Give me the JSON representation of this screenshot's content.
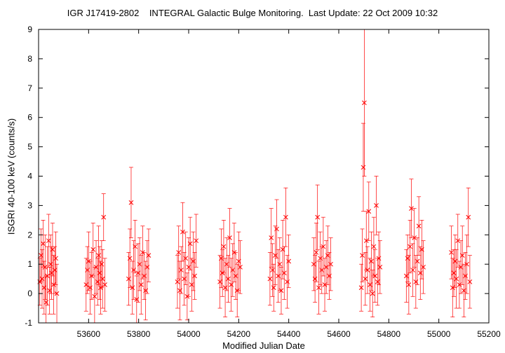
{
  "chart_data": {
    "type": "scatter",
    "title": "IGR J17419-2802    INTEGRAL Galactic Bulge Monitoring.  Last Update: 22 Oct 2009 10:32",
    "xlabel": "Modified Julian Date",
    "ylabel": "ISGRI 40-100 keV (counts/s)",
    "xlim": [
      53400,
      55200
    ],
    "ylim": [
      -1,
      9
    ],
    "xticks": [
      53600,
      53800,
      54000,
      54200,
      54400,
      54600,
      54800,
      55000,
      55200
    ],
    "yticks": [
      -1,
      0,
      1,
      2,
      3,
      4,
      5,
      6,
      7,
      8,
      9
    ],
    "grid": false,
    "legend": "none",
    "marker": "x",
    "error_bars": true,
    "color": "#ff0000",
    "series": [
      {
        "x": [
          53405,
          53410,
          53414,
          53418,
          53422,
          53426,
          53430,
          53435,
          53440,
          53444,
          53448,
          53452,
          53456,
          53460,
          53465,
          53469,
          53473,
          53590,
          53595,
          53600,
          53606,
          53612,
          53618,
          53624,
          53630,
          53636,
          53640,
          53644,
          53648,
          53652,
          53656,
          53660,
          53665,
          53760,
          53765,
          53770,
          53775,
          53780,
          53786,
          53792,
          53798,
          53804,
          53810,
          53816,
          53822,
          53828,
          53834,
          53840,
          53955,
          53960,
          53965,
          53970,
          53976,
          53982,
          53988,
          53994,
          54000,
          54006,
          54012,
          54018,
          54024,
          54030,
          54125,
          54130,
          54135,
          54140,
          54146,
          54152,
          54158,
          54164,
          54170,
          54176,
          54182,
          54188,
          54194,
          54200,
          54206,
          54325,
          54330,
          54335,
          54340,
          54346,
          54352,
          54358,
          54364,
          54370,
          54376,
          54382,
          54388,
          54394,
          54400,
          54500,
          54505,
          54510,
          54515,
          54520,
          54526,
          54532,
          54538,
          54544,
          54550,
          54556,
          54562,
          54568,
          54690,
          54694,
          54698,
          54702,
          54706,
          54710,
          54715,
          54720,
          54725,
          54730,
          54735,
          54740,
          54745,
          54750,
          54755,
          54760,
          54765,
          54870,
          54875,
          54880,
          54885,
          54890,
          54896,
          54902,
          54908,
          54914,
          54920,
          54926,
          54932,
          54938,
          55050,
          55055,
          55060,
          55065,
          55070,
          55076,
          55082,
          55088,
          55094,
          55100,
          55106,
          55112,
          55118,
          55124
        ],
        "y": [
          0.4,
          1.3,
          0.5,
          1.7,
          0.2,
          0.9,
          -0.3,
          0.6,
          1.8,
          0.1,
          1.0,
          0.7,
          1.5,
          0.3,
          0.8,
          1.2,
          0.0,
          0.3,
          0.8,
          1.1,
          0.2,
          0.6,
          1.5,
          -0.1,
          0.9,
          0.4,
          1.3,
          0.7,
          0.2,
          1.0,
          0.5,
          2.6,
          0.3,
          0.5,
          1.2,
          3.1,
          0.2,
          0.8,
          1.6,
          -0.2,
          0.7,
          1.0,
          0.3,
          1.4,
          0.6,
          0.1,
          0.9,
          1.3,
          0.4,
          1.4,
          0.1,
          0.8,
          2.1,
          0.5,
          1.2,
          -0.1,
          0.9,
          1.7,
          0.3,
          1.1,
          0.6,
          1.8,
          0.4,
          1.2,
          0.7,
          1.6,
          0.2,
          1.0,
          0.5,
          1.9,
          0.3,
          0.8,
          1.4,
          0.6,
          0.1,
          1.1,
          0.9,
          0.5,
          1.9,
          0.8,
          0.2,
          1.3,
          2.2,
          0.6,
          1.0,
          0.1,
          1.5,
          0.7,
          2.6,
          0.4,
          1.1,
          1.0,
          0.5,
          1.4,
          2.6,
          0.2,
          1.2,
          0.8,
          1.6,
          0.3,
          0.9,
          1.3,
          0.6,
          1.0,
          0.2,
          1.3,
          4.3,
          6.5,
          0.5,
          1.8,
          0.8,
          2.8,
          0.3,
          1.1,
          0.0,
          1.6,
          0.6,
          3.0,
          0.4,
          1.2,
          0.9,
          0.6,
          1.2,
          0.3,
          1.6,
          2.9,
          0.8,
          1.9,
          0.4,
          1.1,
          2.3,
          0.7,
          1.5,
          0.9,
          1.4,
          0.2,
          0.7,
          1.1,
          0.5,
          1.8,
          0.3,
          0.9,
          1.3,
          0.1,
          0.6,
          1.0,
          2.6,
          0.4
        ],
        "err": [
          0.8,
          0.9,
          1.0,
          0.8,
          0.9,
          1.1,
          0.9,
          1.0,
          0.9,
          0.8,
          1.0,
          0.9,
          0.9,
          1.0,
          0.8,
          0.9,
          1.0,
          0.9,
          0.8,
          1.0,
          0.9,
          0.8,
          0.9,
          1.0,
          0.9,
          0.8,
          1.0,
          0.9,
          0.9,
          0.8,
          1.0,
          0.8,
          0.9,
          0.9,
          1.0,
          1.2,
          0.9,
          1.0,
          0.9,
          0.8,
          1.0,
          0.9,
          1.0,
          0.9,
          0.8,
          1.0,
          0.9,
          0.9,
          0.9,
          0.9,
          1.0,
          0.8,
          1.0,
          0.9,
          0.9,
          0.8,
          1.0,
          0.9,
          0.9,
          1.0,
          0.8,
          0.9,
          0.9,
          1.0,
          0.8,
          0.9,
          1.0,
          0.9,
          0.8,
          1.0,
          0.9,
          0.9,
          1.0,
          0.8,
          0.9,
          1.0,
          0.9,
          0.9,
          1.0,
          0.9,
          0.8,
          1.0,
          1.0,
          0.9,
          0.9,
          0.8,
          1.0,
          0.9,
          1.0,
          0.9,
          0.9,
          0.9,
          0.8,
          1.0,
          1.1,
          0.9,
          0.9,
          0.8,
          1.0,
          0.9,
          0.9,
          1.0,
          0.8,
          0.9,
          0.8,
          0.9,
          1.5,
          2.5,
          0.9,
          1.0,
          0.8,
          1.0,
          0.9,
          1.0,
          0.8,
          1.0,
          0.9,
          1.0,
          0.8,
          0.9,
          0.9,
          0.9,
          0.8,
          1.0,
          0.9,
          1.0,
          0.9,
          1.0,
          0.9,
          0.8,
          1.0,
          0.9,
          1.0,
          0.9,
          0.9,
          1.0,
          0.8,
          0.9,
          1.0,
          0.9,
          0.8,
          0.9,
          1.0,
          0.9,
          0.8,
          1.0,
          1.0,
          0.9
        ]
      }
    ]
  }
}
